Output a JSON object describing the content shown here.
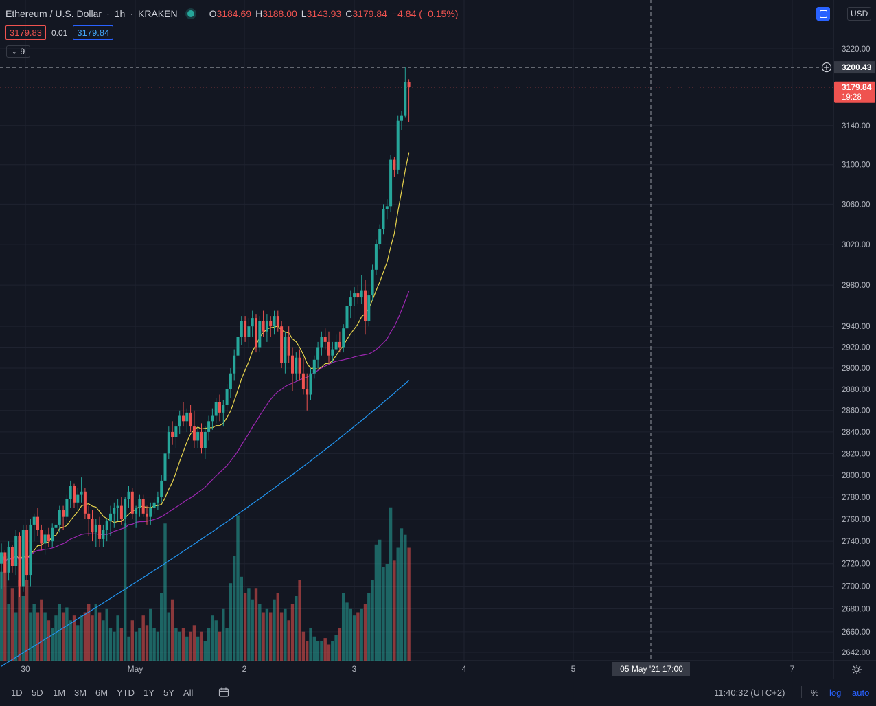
{
  "legend": {
    "symbol": "Ethereum / U.S. Dollar",
    "interval": "1h",
    "exchange": "KRAKEN",
    "open_label": "O",
    "open": "3184.69",
    "high_label": "H",
    "high": "3188.00",
    "low_label": "L",
    "low": "3143.93",
    "close_label": "C",
    "close": "3179.84",
    "change": "−4.84 (−0.15%)",
    "bid": "3179.83",
    "spread": "0.01",
    "ask": "3179.84",
    "indicators_count": "9"
  },
  "currency": "USD",
  "price_axis": {
    "ticks": [
      "3220.00",
      "3140.00",
      "3100.00",
      "3060.00",
      "3020.00",
      "2980.00",
      "2940.00",
      "2920.00",
      "2900.00",
      "2880.00",
      "2860.00",
      "2840.00",
      "2820.00",
      "2800.00",
      "2780.00",
      "2760.00",
      "2740.00",
      "2720.00",
      "2700.00",
      "2680.00",
      "2660.00",
      "2642.00"
    ],
    "crosshair_label": "3200.43",
    "last_price_label": "3179.84",
    "countdown": "19:28"
  },
  "time_axis": {
    "ticks": [
      "30",
      "May",
      "2",
      "3",
      "4",
      "5",
      "7"
    ],
    "crosshair_label": "05 May '21   17:00"
  },
  "bottom_bar": {
    "ranges": [
      "1D",
      "5D",
      "1M",
      "3M",
      "6M",
      "YTD",
      "1Y",
      "5Y",
      "All"
    ],
    "clock": "11:40:32 (UTC+2)",
    "percent": "%",
    "log": "log",
    "auto": "auto"
  },
  "colors": {
    "background": "#131722",
    "up": "#26a69a",
    "down": "#ef5350",
    "ma_fast": "#e8d44d",
    "ma_mid": "#9c27b0",
    "ma_slow": "#2196f3",
    "accent": "#2962ff"
  },
  "chart_data": {
    "type": "candlestick",
    "interval": "1h",
    "y_scale": "log",
    "ylim": [
      2635,
      3235
    ],
    "x_start": "2021-04-30 00:00",
    "candles_ohl_c": [
      [
        2720,
        2738,
        2698,
        2730
      ],
      [
        2730,
        2732,
        2700,
        2712
      ],
      [
        2712,
        2740,
        2705,
        2735
      ],
      [
        2735,
        2737,
        2712,
        2718
      ],
      [
        2718,
        2750,
        2710,
        2745
      ],
      [
        2745,
        2748,
        2690,
        2700
      ],
      [
        2700,
        2755,
        2695,
        2750
      ],
      [
        2750,
        2755,
        2705,
        2710
      ],
      [
        2710,
        2760,
        2700,
        2755
      ],
      [
        2755,
        2765,
        2740,
        2762
      ],
      [
        2762,
        2770,
        2745,
        2750
      ],
      [
        2750,
        2755,
        2732,
        2738
      ],
      [
        2738,
        2750,
        2728,
        2746
      ],
      [
        2746,
        2752,
        2735,
        2740
      ],
      [
        2740,
        2756,
        2735,
        2752
      ],
      [
        2752,
        2762,
        2745,
        2755
      ],
      [
        2755,
        2772,
        2748,
        2768
      ],
      [
        2768,
        2772,
        2750,
        2762
      ],
      [
        2762,
        2782,
        2755,
        2778
      ],
      [
        2778,
        2795,
        2770,
        2790
      ],
      [
        2790,
        2792,
        2770,
        2775
      ],
      [
        2775,
        2788,
        2768,
        2782
      ],
      [
        2782,
        2798,
        2775,
        2785
      ],
      [
        2785,
        2788,
        2760,
        2765
      ],
      [
        2765,
        2772,
        2745,
        2760
      ],
      [
        2760,
        2768,
        2740,
        2748
      ],
      [
        2748,
        2760,
        2735,
        2755
      ],
      [
        2755,
        2762,
        2735,
        2742
      ],
      [
        2742,
        2755,
        2735,
        2750
      ],
      [
        2750,
        2760,
        2740,
        2758
      ],
      [
        2758,
        2772,
        2745,
        2765
      ],
      [
        2765,
        2775,
        2752,
        2770
      ],
      [
        2770,
        2778,
        2758,
        2772
      ],
      [
        2772,
        2780,
        2755,
        2760
      ],
      [
        2760,
        2780,
        2752,
        2778
      ],
      [
        2778,
        2790,
        2770,
        2785
      ],
      [
        2785,
        2788,
        2760,
        2765
      ],
      [
        2765,
        2772,
        2752,
        2770
      ],
      [
        2770,
        2782,
        2762,
        2778
      ],
      [
        2778,
        2782,
        2762,
        2765
      ],
      [
        2765,
        2772,
        2755,
        2762
      ],
      [
        2762,
        2775,
        2755,
        2770
      ],
      [
        2770,
        2778,
        2765,
        2775
      ],
      [
        2775,
        2785,
        2768,
        2780
      ],
      [
        2780,
        2800,
        2775,
        2795
      ],
      [
        2795,
        2825,
        2790,
        2820
      ],
      [
        2820,
        2845,
        2815,
        2840
      ],
      [
        2840,
        2850,
        2828,
        2835
      ],
      [
        2835,
        2848,
        2825,
        2845
      ],
      [
        2845,
        2860,
        2838,
        2855
      ],
      [
        2855,
        2868,
        2845,
        2850
      ],
      [
        2850,
        2862,
        2840,
        2858
      ],
      [
        2858,
        2865,
        2840,
        2845
      ],
      [
        2845,
        2860,
        2825,
        2832
      ],
      [
        2832,
        2845,
        2825,
        2840
      ],
      [
        2840,
        2848,
        2820,
        2825
      ],
      [
        2825,
        2845,
        2815,
        2840
      ],
      [
        2840,
        2855,
        2832,
        2850
      ],
      [
        2850,
        2862,
        2842,
        2855
      ],
      [
        2855,
        2872,
        2848,
        2868
      ],
      [
        2868,
        2875,
        2850,
        2858
      ],
      [
        2858,
        2870,
        2845,
        2865
      ],
      [
        2865,
        2885,
        2858,
        2880
      ],
      [
        2880,
        2900,
        2872,
        2895
      ],
      [
        2895,
        2918,
        2888,
        2912
      ],
      [
        2912,
        2935,
        2905,
        2930
      ],
      [
        2930,
        2950,
        2922,
        2945
      ],
      [
        2945,
        2950,
        2925,
        2930
      ],
      [
        2930,
        2948,
        2920,
        2940
      ],
      [
        2940,
        2955,
        2930,
        2948
      ],
      [
        2948,
        2952,
        2915,
        2920
      ],
      [
        2920,
        2950,
        2915,
        2945
      ],
      [
        2945,
        2955,
        2930,
        2935
      ],
      [
        2935,
        2952,
        2925,
        2945
      ],
      [
        2945,
        2950,
        2930,
        2940
      ],
      [
        2940,
        2955,
        2932,
        2950
      ],
      [
        2950,
        2955,
        2935,
        2940
      ],
      [
        2940,
        2945,
        2900,
        2905
      ],
      [
        2905,
        2935,
        2895,
        2930
      ],
      [
        2930,
        2940,
        2905,
        2912
      ],
      [
        2912,
        2920,
        2878,
        2895
      ],
      [
        2895,
        2915,
        2888,
        2910
      ],
      [
        2910,
        2918,
        2888,
        2895
      ],
      [
        2895,
        2910,
        2875,
        2880
      ],
      [
        2880,
        2895,
        2860,
        2875
      ],
      [
        2875,
        2900,
        2870,
        2895
      ],
      [
        2895,
        2912,
        2890,
        2908
      ],
      [
        2908,
        2925,
        2900,
        2920
      ],
      [
        2920,
        2935,
        2912,
        2930
      ],
      [
        2930,
        2938,
        2918,
        2925
      ],
      [
        2925,
        2935,
        2905,
        2912
      ],
      [
        2912,
        2925,
        2905,
        2918
      ],
      [
        2918,
        2932,
        2910,
        2925
      ],
      [
        2925,
        2935,
        2915,
        2920
      ],
      [
        2920,
        2942,
        2915,
        2938
      ],
      [
        2938,
        2965,
        2932,
        2960
      ],
      [
        2960,
        2975,
        2948,
        2968
      ],
      [
        2968,
        2978,
        2960,
        2972
      ],
      [
        2972,
        2980,
        2962,
        2968
      ],
      [
        2968,
        2990,
        2962,
        2975
      ],
      [
        2975,
        2985,
        2932,
        2945
      ],
      [
        2945,
        2975,
        2940,
        2970
      ],
      [
        2970,
        3000,
        2965,
        2995
      ],
      [
        2995,
        3025,
        2990,
        3020
      ],
      [
        3020,
        3040,
        3015,
        3035
      ],
      [
        3035,
        3060,
        3030,
        3055
      ],
      [
        3055,
        3065,
        3045,
        3058
      ],
      [
        3058,
        3110,
        3052,
        3105
      ],
      [
        3105,
        3108,
        3088,
        3095
      ],
      [
        3095,
        3150,
        3090,
        3145
      ],
      [
        3145,
        3155,
        3135,
        3150
      ],
      [
        3150,
        3200.43,
        3148,
        3185
      ],
      [
        3184.69,
        3188,
        3143.93,
        3179.84
      ]
    ],
    "volume_relative": [
      0.55,
      0.65,
      0.35,
      0.45,
      0.3,
      0.5,
      0.4,
      0.5,
      0.3,
      0.35,
      0.3,
      0.38,
      0.3,
      0.25,
      0.2,
      0.28,
      0.35,
      0.3,
      0.33,
      0.25,
      0.28,
      0.22,
      0.28,
      0.3,
      0.35,
      0.28,
      0.35,
      0.3,
      0.25,
      0.32,
      0.2,
      0.18,
      0.28,
      0.2,
      0.85,
      0.15,
      0.25,
      0.18,
      0.2,
      0.28,
      0.22,
      0.32,
      0.2,
      0.18,
      0.42,
      0.85,
      0.3,
      0.38,
      0.2,
      0.18,
      0.2,
      0.15,
      0.18,
      0.22,
      0.15,
      0.18,
      0.12,
      0.2,
      0.28,
      0.25,
      0.18,
      0.32,
      0.2,
      0.48,
      0.65,
      0.9,
      0.52,
      0.42,
      0.45,
      0.38,
      0.45,
      0.35,
      0.3,
      0.32,
      0.3,
      0.38,
      0.42,
      0.3,
      0.32,
      0.25,
      0.35,
      0.4,
      0.5,
      0.18,
      0.12,
      0.2,
      0.15,
      0.12,
      0.12,
      0.14,
      0.1,
      0.12,
      0.16,
      0.2,
      0.42,
      0.36,
      0.32,
      0.28,
      0.3,
      0.32,
      0.35,
      0.42,
      0.5,
      0.72,
      0.75,
      0.58,
      0.6,
      0.95,
      0.62,
      0.7,
      0.82,
      0.78,
      0.7
    ]
  }
}
